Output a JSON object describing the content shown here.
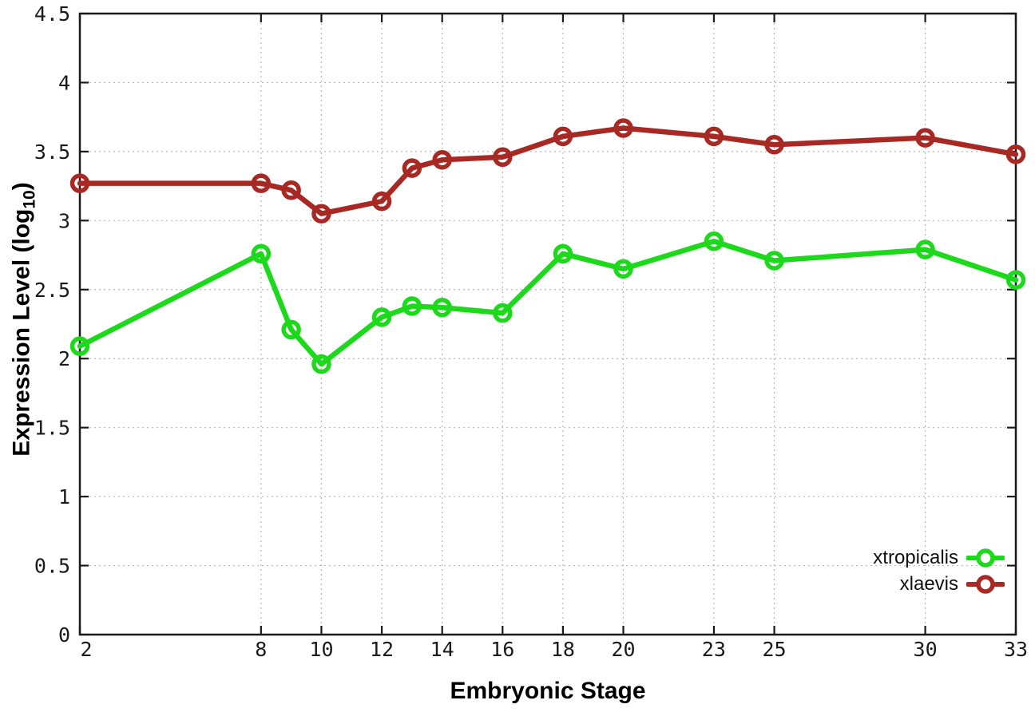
{
  "chart_data": {
    "type": "line",
    "title": "",
    "xlabel": "Embryonic Stage",
    "ylabel": "Expression Level (log10)",
    "ylabel_parts": {
      "prefix": "Expression Level (log",
      "subscript": "10",
      "suffix": ")"
    },
    "xlim": [
      2,
      33
    ],
    "ylim": [
      0,
      4.5
    ],
    "grid": true,
    "legend_position": "bottom-right",
    "x_ticks": [
      2,
      8,
      10,
      12,
      14,
      16,
      18,
      20,
      23,
      25,
      30,
      33
    ],
    "x_tick_labels": [
      "2",
      "8",
      "10",
      "12",
      "14",
      "16",
      "18",
      "20",
      "23",
      "25",
      "30",
      "33"
    ],
    "y_ticks": [
      0,
      0.5,
      1,
      1.5,
      2,
      2.5,
      3,
      3.5,
      4,
      4.5
    ],
    "y_tick_labels": [
      "0",
      "0.5",
      "1",
      "1.5",
      "2",
      "2.5",
      "3",
      "3.5",
      "4",
      "4.5"
    ],
    "x": [
      2,
      8,
      9,
      10,
      12,
      13,
      14,
      16,
      18,
      20,
      23,
      25,
      30,
      33
    ],
    "series": [
      {
        "name": "xtropicalis",
        "color": "#1cd91c",
        "marker": "open-circle",
        "values": [
          2.09,
          2.76,
          2.21,
          1.96,
          2.3,
          2.38,
          2.37,
          2.33,
          2.76,
          2.65,
          2.85,
          2.71,
          2.79,
          2.57
        ]
      },
      {
        "name": "xlaevis",
        "color": "#a82823",
        "marker": "open-circle",
        "values": [
          3.27,
          3.27,
          3.22,
          3.05,
          3.14,
          3.38,
          3.44,
          3.46,
          3.61,
          3.67,
          3.61,
          3.55,
          3.6,
          3.48
        ]
      }
    ],
    "line_width": 6.5,
    "marker_radius": 9.5,
    "frame_color": "#1a1a1a",
    "grid_color": "#b8b8b8",
    "background": "#ffffff",
    "text_color": "#1a1a1a"
  }
}
